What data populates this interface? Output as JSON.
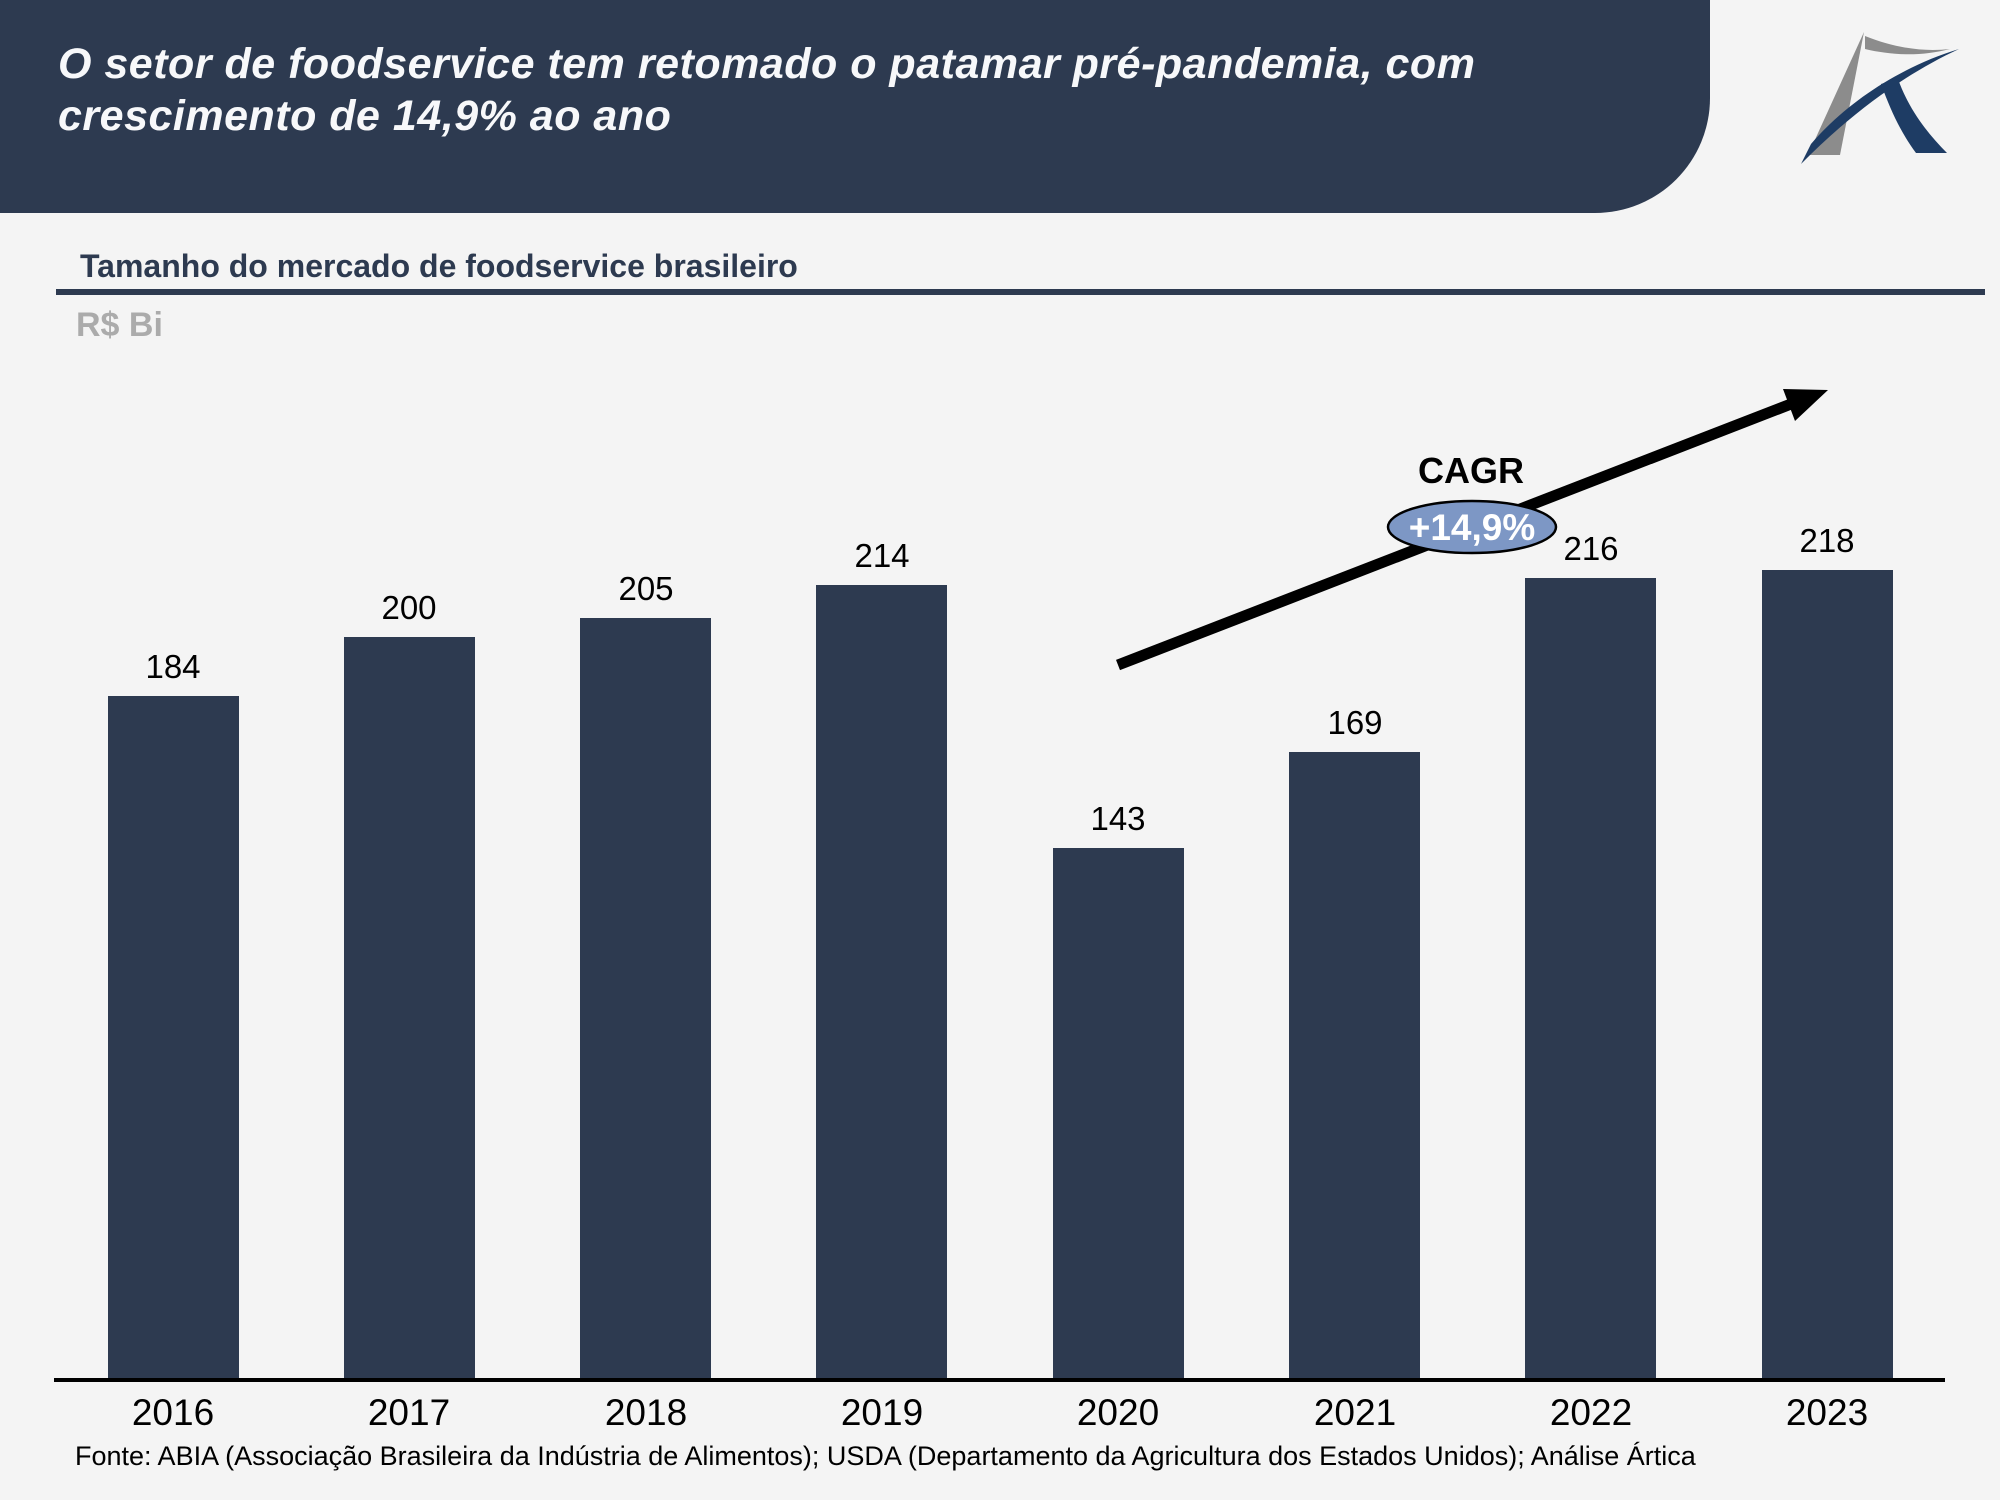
{
  "slide": {
    "title_line1": "O setor de foodservice tem retomado o patamar pré-pandemia, com",
    "title_line2": "crescimento de 14,9% ao ano",
    "chart_title": "Tamanho do mercado de foodservice brasileiro",
    "unit_label": "R$ Bi",
    "footer": "Fonte: ABIA (Associação Brasileira da Indústria de Alimentos); USDA (Departamento da Agricultura dos Estados Unidos); Análise Ártica"
  },
  "annotation": {
    "cagr_label": "CAGR",
    "cagr_value": "+14,9%"
  },
  "chart_data": {
    "type": "bar",
    "title": "Tamanho do mercado de foodservice brasileiro",
    "ylabel": "R$ Bi",
    "xlabel": "",
    "categories": [
      "2016",
      "2017",
      "2018",
      "2019",
      "2020",
      "2021",
      "2022",
      "2023"
    ],
    "values": [
      184,
      200,
      205,
      214,
      143,
      169,
      216,
      218
    ],
    "ylim": [
      0,
      230
    ],
    "grid": false,
    "legend": "none",
    "value_labels_shown": true,
    "annotations": [
      {
        "type": "trend-arrow",
        "label": "CAGR",
        "value": "+14,9%"
      }
    ]
  },
  "colors": {
    "navy": "#2d3a50",
    "background": "#f4f4f4",
    "ellipse_fill": "#7d97c5",
    "ellipse_border": "#000000",
    "unit_label_gray": "#ababab",
    "title_white": "#f7f8fa",
    "label_black": "#000000",
    "logo_navy": "#1e3c64",
    "logo_gray": "#8c8c8c"
  }
}
